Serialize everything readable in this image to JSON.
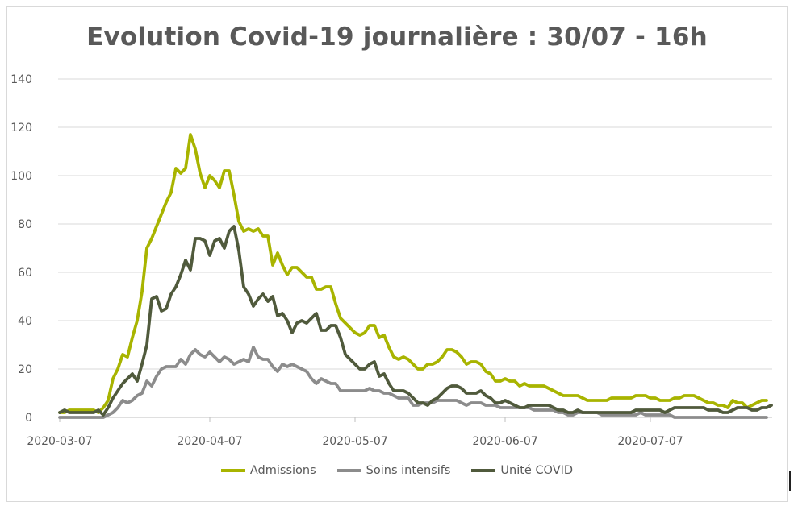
{
  "chart_data": {
    "type": "line",
    "title": "Evolution Covid-19 journalière : 30/07 - 16h",
    "xlabel": "",
    "ylabel": "",
    "ylim": [
      0,
      140
    ],
    "yticks": [
      0,
      20,
      40,
      60,
      80,
      100,
      120,
      140
    ],
    "x_start": "2020-03-07",
    "xticks": [
      "2020-03-07",
      "2020-04-07",
      "2020-05-07",
      "2020-06-07",
      "2020-07-07"
    ],
    "grid": true,
    "legend_placement": "bottom",
    "series": [
      {
        "name": "Admissions",
        "color": "#a8b400",
        "values": [
          2,
          2,
          3,
          3,
          3,
          3,
          3,
          3,
          2,
          4,
          7,
          16,
          20,
          26,
          25,
          33,
          40,
          52,
          70,
          74,
          79,
          84,
          89,
          93,
          103,
          101,
          103,
          117,
          111,
          101,
          95,
          100,
          98,
          95,
          102,
          102,
          92,
          81,
          77,
          78,
          77,
          78,
          75,
          75,
          63,
          68,
          63,
          59,
          62,
          62,
          60,
          58,
          58,
          53,
          53,
          54,
          54,
          47,
          41,
          39,
          37,
          35,
          34,
          35,
          38,
          38,
          33,
          34,
          29,
          25,
          24,
          25,
          24,
          22,
          20,
          20,
          22,
          22,
          23,
          25,
          28,
          28,
          27,
          25,
          22,
          23,
          23,
          22,
          19,
          18,
          15,
          15,
          16,
          15,
          15,
          13,
          14,
          13,
          13,
          13,
          13,
          12,
          11,
          10,
          9,
          9,
          9,
          9,
          8,
          7,
          7,
          7,
          7,
          7,
          8,
          8,
          8,
          8,
          8,
          9,
          9,
          9,
          8,
          8,
          7,
          7,
          7,
          8,
          8,
          9,
          9,
          9,
          8,
          7,
          6,
          6,
          5,
          5,
          4,
          7,
          6,
          6,
          4,
          5,
          6,
          7,
          7
        ]
      },
      {
        "name": "Soins intensifs",
        "color": "#8c8c8c",
        "values": [
          0,
          0,
          0,
          0,
          0,
          0,
          0,
          0,
          0,
          0,
          1,
          2,
          4,
          7,
          6,
          7,
          9,
          10,
          15,
          13,
          17,
          20,
          21,
          21,
          21,
          24,
          22,
          26,
          28,
          26,
          25,
          27,
          25,
          23,
          25,
          24,
          22,
          23,
          24,
          23,
          29,
          25,
          24,
          24,
          21,
          19,
          22,
          21,
          22,
          21,
          20,
          19,
          16,
          14,
          16,
          15,
          14,
          14,
          11,
          11,
          11,
          11,
          11,
          11,
          12,
          11,
          11,
          10,
          10,
          9,
          8,
          8,
          8,
          5,
          5,
          6,
          6,
          6,
          7,
          7,
          7,
          7,
          7,
          6,
          5,
          6,
          6,
          6,
          5,
          5,
          5,
          4,
          4,
          4,
          4,
          4,
          4,
          4,
          3,
          3,
          3,
          3,
          3,
          2,
          2,
          1,
          1,
          2,
          2,
          2,
          2,
          2,
          1,
          1,
          1,
          1,
          1,
          1,
          1,
          1,
          2,
          1,
          1,
          1,
          1,
          1,
          1,
          0,
          0,
          0,
          0,
          0,
          0,
          0,
          0,
          0,
          0,
          0,
          0,
          0,
          0,
          0,
          0,
          0,
          0,
          0,
          0
        ]
      },
      {
        "name": "Unité COVID",
        "color": "#505a3c",
        "values": [
          2,
          3,
          2,
          2,
          2,
          2,
          2,
          2,
          3,
          1,
          4,
          8,
          11,
          14,
          16,
          18,
          15,
          22,
          30,
          49,
          50,
          44,
          45,
          51,
          54,
          59,
          65,
          61,
          74,
          74,
          73,
          67,
          73,
          74,
          70,
          77,
          79,
          69,
          54,
          51,
          46,
          49,
          51,
          48,
          50,
          42,
          43,
          40,
          35,
          39,
          40,
          39,
          41,
          43,
          36,
          36,
          38,
          38,
          33,
          26,
          24,
          22,
          20,
          20,
          22,
          23,
          17,
          18,
          14,
          11,
          11,
          11,
          10,
          8,
          6,
          6,
          5,
          7,
          8,
          10,
          12,
          13,
          13,
          12,
          10,
          10,
          10,
          11,
          9,
          8,
          6,
          6,
          7,
          6,
          5,
          4,
          4,
          5,
          5,
          5,
          5,
          5,
          4,
          3,
          3,
          2,
          2,
          3,
          2,
          2,
          2,
          2,
          2,
          2,
          2,
          2,
          2,
          2,
          2,
          3,
          3,
          3,
          3,
          3,
          3,
          2,
          3,
          4,
          4,
          4,
          4,
          4,
          4,
          4,
          3,
          3,
          3,
          2,
          2,
          3,
          4,
          4,
          4,
          3,
          3,
          4,
          4,
          5
        ]
      }
    ]
  }
}
